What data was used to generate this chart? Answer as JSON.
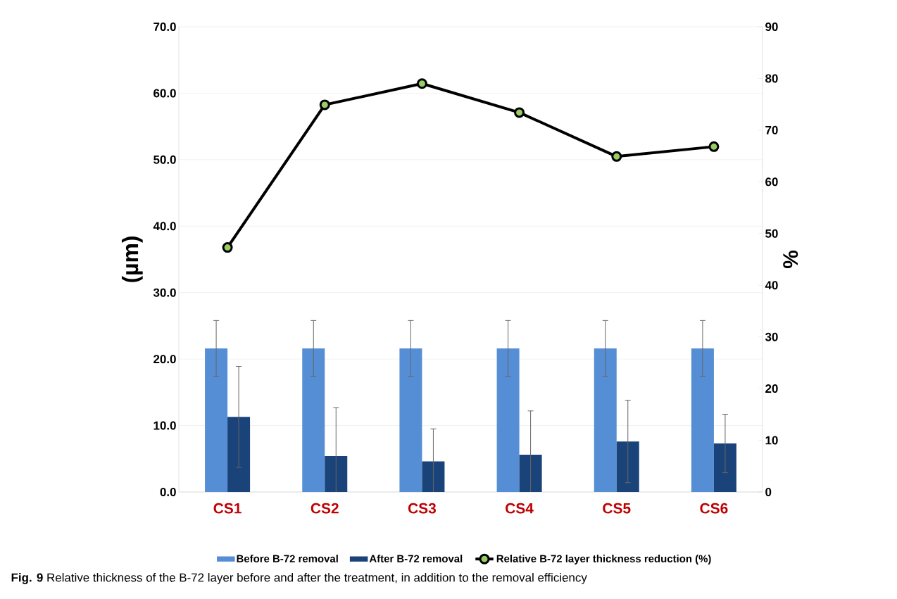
{
  "chart_data": {
    "type": "bar",
    "ylabel": "(µm)",
    "y2label": "%",
    "categories": [
      "CS1",
      "CS2",
      "CS3",
      "CS4",
      "CS5",
      "CS6"
    ],
    "series": [
      {
        "name": "Before B-72 removal",
        "color": "#558ed5",
        "values": [
          21.6,
          21.6,
          21.6,
          21.6,
          21.6,
          21.6
        ],
        "errors": [
          4.2,
          4.2,
          4.2,
          4.2,
          4.2,
          4.2
        ]
      },
      {
        "name": "After  B-72 removal",
        "color": "#1a4379",
        "values": [
          11.3,
          5.4,
          4.6,
          5.6,
          7.6,
          7.3
        ],
        "errors": [
          7.6,
          7.3,
          4.9,
          6.6,
          6.2,
          4.4
        ]
      },
      {
        "name": "Relative B-72 layer thickness reduction (%)",
        "type": "line",
        "axis": "y2",
        "color": "#000000",
        "values": [
          47.3,
          74.9,
          79.0,
          73.4,
          64.9,
          66.8
        ]
      }
    ],
    "ylim": [
      0,
      70
    ],
    "yticks": [
      {
        "value": 0,
        "label": "0.0"
      },
      {
        "value": 10,
        "label": "10.0"
      },
      {
        "value": 20,
        "label": "20.0"
      },
      {
        "value": 30,
        "label": "30.0"
      },
      {
        "value": 40,
        "label": "40.0"
      },
      {
        "value": 50,
        "label": "50.0"
      },
      {
        "value": 60,
        "label": "60.0"
      },
      {
        "value": 70,
        "label": "70.0"
      }
    ],
    "y2lim": [
      0,
      90
    ],
    "y2ticks": [
      0,
      10,
      20,
      30,
      40,
      50,
      60,
      70,
      80,
      90
    ],
    "grid": "y",
    "legend": "bottom",
    "marker": "circle",
    "line_style": "solid",
    "annotations": [
      "**Fig. 9** Relative thickness of the B-72 layer before and after the treatment, in addition to the removal efficiency"
    ]
  }
}
